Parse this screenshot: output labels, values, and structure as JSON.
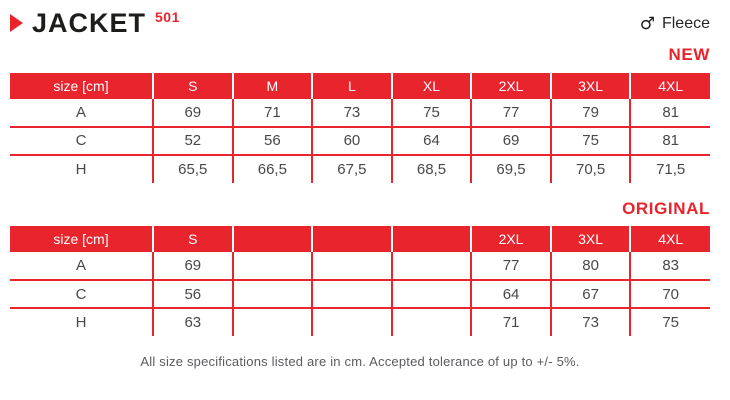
{
  "page": {
    "title": "JACKET",
    "product_number": "501",
    "material": "Fleece",
    "gender_icon": "male",
    "footer_note": "All size specifications listed are in cm. Accepted tolerance of up to +/- 5%."
  },
  "colors": {
    "accent_red": "#e8242d",
    "title_ink": "#1d1d1b",
    "cell_text": "#48484a",
    "footer_gray": "#5a5b5e"
  },
  "tables": [
    {
      "label": "NEW",
      "header": [
        "size [cm]",
        "S",
        "M",
        "L",
        "XL",
        "2XL",
        "3XL",
        "4XL"
      ],
      "rows": [
        {
          "label": "A",
          "values": [
            "69",
            "71",
            "73",
            "75",
            "77",
            "79",
            "81"
          ]
        },
        {
          "label": "C",
          "values": [
            "52",
            "56",
            "60",
            "64",
            "69",
            "75",
            "81"
          ]
        },
        {
          "label": "H",
          "values": [
            "65,5",
            "66,5",
            "67,5",
            "68,5",
            "69,5",
            "70,5",
            "71,5"
          ]
        }
      ]
    },
    {
      "label": "ORIGINAL",
      "header": [
        "size [cm]",
        "S",
        "",
        "",
        "",
        "2XL",
        "3XL",
        "4XL"
      ],
      "rows": [
        {
          "label": "A",
          "values": [
            "69",
            "",
            "",
            "",
            "77",
            "80",
            "83"
          ]
        },
        {
          "label": "C",
          "values": [
            "56",
            "",
            "",
            "",
            "64",
            "67",
            "70"
          ]
        },
        {
          "label": "H",
          "values": [
            "63",
            "",
            "",
            "",
            "71",
            "73",
            "75"
          ]
        }
      ]
    }
  ]
}
